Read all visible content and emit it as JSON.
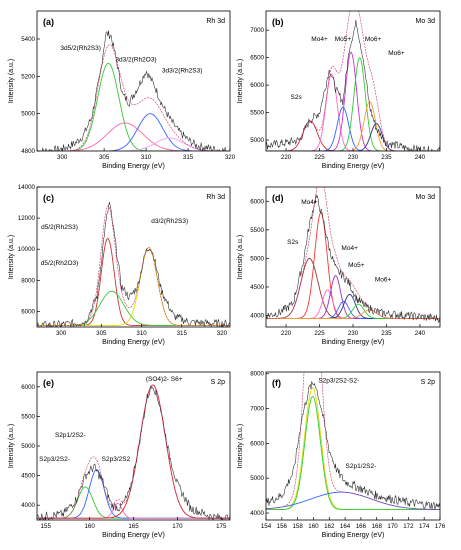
{
  "figure": {
    "xlabel": "Binding Energy (eV)",
    "ylabel": "Intensity (a.u.)"
  },
  "chart_data": [
    {
      "type": "line",
      "panel": "(a)",
      "element": "Rh 3d",
      "xlim": [
        297,
        320
      ],
      "ylim": [
        4800,
        5550
      ],
      "xticks": [
        300,
        305,
        310,
        315,
        320
      ],
      "yticks": [
        4800,
        5000,
        5200,
        5400
      ],
      "xlabel": "Binding Energy (eV)",
      "ylabel": "Intensity (a.u.)",
      "background": 4800,
      "raw_points": [
        [
          298,
          4800
        ],
        [
          300,
          4810
        ],
        [
          301.5,
          4840
        ],
        [
          302.5,
          4880
        ],
        [
          303.5,
          4980
        ],
        [
          304.5,
          5200
        ],
        [
          305.2,
          5430
        ],
        [
          305.8,
          5420
        ],
        [
          306.5,
          5280
        ],
        [
          307.2,
          5100
        ],
        [
          308,
          5060
        ],
        [
          309,
          5140
        ],
        [
          310,
          5230
        ],
        [
          311,
          5150
        ],
        [
          312,
          5040
        ],
        [
          313,
          4960
        ],
        [
          314,
          4900
        ],
        [
          315,
          4860
        ],
        [
          316,
          4830
        ],
        [
          318,
          4810
        ],
        [
          320,
          4800
        ]
      ],
      "peaks": [
        {
          "center": 305.5,
          "height": 470,
          "fwhm": 3.0,
          "color": "#33cc33"
        },
        {
          "center": 307.5,
          "height": 150,
          "fwhm": 5.0,
          "color": "#ff66aa"
        },
        {
          "center": 310.5,
          "height": 200,
          "fwhm": 3.5,
          "color": "#3366ff"
        },
        {
          "center": 312.8,
          "height": 70,
          "fwhm": 4.0,
          "color": "#ff99ff"
        }
      ],
      "annotations": [
        {
          "text": "3d5/2(Rh2S3)",
          "x": 302.2,
          "y": 5340
        },
        {
          "text": "3d3/2(Rh2O3)",
          "x": 308.8,
          "y": 5280
        },
        {
          "text": "3d3/2(Rh2S3)",
          "x": 314.3,
          "y": 5220
        }
      ]
    },
    {
      "type": "line",
      "panel": "(b)",
      "element": "Mo 3d",
      "xlim": [
        217,
        243
      ],
      "ylim": [
        4800,
        7350
      ],
      "xticks": [
        220,
        225,
        230,
        235,
        240
      ],
      "yticks": [
        5000,
        5500,
        6000,
        6500,
        7000
      ],
      "xlabel": "Binding Energy (eV)",
      "ylabel": "Intensity (a.u.)",
      "background": 4800,
      "raw_points": [
        [
          217,
          4900
        ],
        [
          220,
          4950
        ],
        [
          222,
          5000
        ],
        [
          223.5,
          5350
        ],
        [
          225,
          5500
        ],
        [
          226.5,
          6300
        ],
        [
          227.5,
          5900
        ],
        [
          228.5,
          5700
        ],
        [
          229.5,
          6700
        ],
        [
          230.5,
          7150
        ],
        [
          231.5,
          6500
        ],
        [
          232.5,
          5600
        ],
        [
          233.5,
          5200
        ],
        [
          235,
          4950
        ],
        [
          238,
          4850
        ],
        [
          243,
          4800
        ]
      ],
      "peaks": [
        {
          "center": 223.6,
          "height": 550,
          "fwhm": 2.5,
          "color": "#cc3333"
        },
        {
          "center": 226.8,
          "height": 1400,
          "fwhm": 2.0,
          "color": "#ff66cc"
        },
        {
          "center": 228.5,
          "height": 800,
          "fwhm": 2.0,
          "color": "#3366ff"
        },
        {
          "center": 229.7,
          "height": 1800,
          "fwhm": 2.0,
          "color": "#cc33cc"
        },
        {
          "center": 231.0,
          "height": 1700,
          "fwhm": 2.0,
          "color": "#33cc33"
        },
        {
          "center": 232.5,
          "height": 900,
          "fwhm": 2.0,
          "color": "#ff9933"
        },
        {
          "center": 233.5,
          "height": 500,
          "fwhm": 2.0,
          "color": "#333399"
        }
      ],
      "annotations": [
        {
          "text": "S2s",
          "x": 221.5,
          "y": 5750
        },
        {
          "text": "Mo4+",
          "x": 225.0,
          "y": 6800
        },
        {
          "text": "Mo5+",
          "x": 228.5,
          "y": 6800
        },
        {
          "text": "Mo6+",
          "x": 233.0,
          "y": 6800
        },
        {
          "text": "Mo6+",
          "x": 236.5,
          "y": 6550
        }
      ]
    },
    {
      "type": "line",
      "panel": "(c)",
      "element": "Rh 3d",
      "xlim": [
        297,
        321
      ],
      "ylim": [
        5000,
        14000
      ],
      "xticks": [
        300,
        305,
        310,
        315,
        320
      ],
      "yticks": [
        6000,
        8000,
        10000,
        12000,
        14000
      ],
      "xlabel": "Binding Energy (eV)",
      "ylabel": "Intensity (a.u.)",
      "background": 5100,
      "raw_points": [
        [
          297,
          5100
        ],
        [
          300,
          5150
        ],
        [
          303,
          5300
        ],
        [
          304.5,
          7000
        ],
        [
          305.5,
          11500
        ],
        [
          306,
          13000
        ],
        [
          306.6,
          11000
        ],
        [
          307.5,
          7600
        ],
        [
          308.5,
          6900
        ],
        [
          309.5,
          7600
        ],
        [
          310.5,
          9800
        ],
        [
          311,
          10200
        ],
        [
          311.5,
          9600
        ],
        [
          312.5,
          7300
        ],
        [
          314,
          5700
        ],
        [
          316,
          5300
        ],
        [
          320,
          5200
        ]
      ],
      "peaks": [
        {
          "center": 305.8,
          "height": 5600,
          "fwhm": 1.9,
          "color": "#cc3333"
        },
        {
          "center": 306.3,
          "height": 2200,
          "fwhm": 3.5,
          "color": "#33cc33"
        },
        {
          "center": 310.9,
          "height": 5000,
          "fwhm": 2.5,
          "color": "#dddd00"
        }
      ],
      "annotations": [
        {
          "text": "d5/2(Rh2S3)",
          "x": 299.8,
          "y": 11300
        },
        {
          "text": "d5/2(Rh2O3)",
          "x": 299.8,
          "y": 9000
        },
        {
          "text": "d3/2(Rh2S3)",
          "x": 313.5,
          "y": 11700
        }
      ]
    },
    {
      "type": "line",
      "panel": "(d)",
      "element": "Mo 3d",
      "xlim": [
        217,
        243
      ],
      "ylim": [
        3800,
        6250
      ],
      "xticks": [
        220,
        225,
        230,
        235,
        240
      ],
      "yticks": [
        4000,
        4500,
        5000,
        5500,
        6000
      ],
      "xlabel": "Binding Energy (eV)",
      "ylabel": "Intensity (a.u.)",
      "background": 3950,
      "raw_points": [
        [
          217,
          4000
        ],
        [
          219,
          4050
        ],
        [
          221,
          4200
        ],
        [
          222.5,
          4900
        ],
        [
          223.5,
          5600
        ],
        [
          224.5,
          6100
        ],
        [
          225.5,
          5700
        ],
        [
          226.5,
          5150
        ],
        [
          227.5,
          4800
        ],
        [
          228.5,
          4700
        ],
        [
          229.5,
          4550
        ],
        [
          230.5,
          4300
        ],
        [
          232,
          4150
        ],
        [
          234,
          4050
        ],
        [
          238,
          4000
        ],
        [
          243,
          3950
        ]
      ],
      "peaks": [
        {
          "center": 223.5,
          "height": 1050,
          "fwhm": 3.0,
          "color": "#993333"
        },
        {
          "center": 225.2,
          "height": 1850,
          "fwhm": 2.2,
          "color": "#ff3333"
        },
        {
          "center": 226.2,
          "height": 500,
          "fwhm": 1.8,
          "color": "#ff66cc"
        },
        {
          "center": 227.4,
          "height": 750,
          "fwhm": 1.8,
          "color": "#9933cc"
        },
        {
          "center": 228.6,
          "height": 300,
          "fwhm": 1.8,
          "color": "#3366ff"
        },
        {
          "center": 229.5,
          "height": 420,
          "fwhm": 2.0,
          "color": "#333399"
        },
        {
          "center": 230.8,
          "height": 250,
          "fwhm": 2.0,
          "color": "#33cc33"
        },
        {
          "center": 232.5,
          "height": 150,
          "fwhm": 2.5,
          "color": "#ff9933"
        }
      ],
      "annotations": [
        {
          "text": "Mo4+",
          "x": 223.5,
          "y": 5950
        },
        {
          "text": "S2s",
          "x": 221.0,
          "y": 5250
        },
        {
          "text": "Mo4+",
          "x": 229.5,
          "y": 5150
        },
        {
          "text": "Mo5+",
          "x": 230.5,
          "y": 4850
        },
        {
          "text": "Mo6+",
          "x": 234.5,
          "y": 4600
        }
      ]
    },
    {
      "type": "line",
      "panel": "(e)",
      "element": "S 2p",
      "xlim": [
        154,
        176
      ],
      "ylim": [
        3750,
        6250
      ],
      "xticks": [
        155,
        160,
        165,
        170,
        175
      ],
      "yticks": [
        4000,
        4500,
        5000,
        5500,
        6000
      ],
      "xlabel": "Binding Energy (eV)",
      "ylabel": "Intensity (a.u.)",
      "background": 3780,
      "raw_points": [
        [
          154,
          3800
        ],
        [
          157,
          3850
        ],
        [
          158.5,
          4100
        ],
        [
          159.5,
          4500
        ],
        [
          160.5,
          4650
        ],
        [
          161.5,
          4400
        ],
        [
          162.5,
          4000
        ],
        [
          163.5,
          3950
        ],
        [
          164.5,
          4200
        ],
        [
          165.5,
          4900
        ],
        [
          166.5,
          5800
        ],
        [
          167.2,
          6050
        ],
        [
          168,
          5700
        ],
        [
          169,
          4900
        ],
        [
          170,
          4350
        ],
        [
          171.5,
          3950
        ],
        [
          174,
          3800
        ],
        [
          176,
          3780
        ]
      ],
      "peaks": [
        {
          "center": 159.5,
          "height": 530,
          "fwhm": 2.0,
          "color": "#33cc33"
        },
        {
          "center": 160.8,
          "height": 820,
          "fwhm": 2.0,
          "color": "#3366ff"
        },
        {
          "center": 163.2,
          "height": 250,
          "fwhm": 1.2,
          "color": "#ff66cc"
        },
        {
          "center": 167.2,
          "height": 2250,
          "fwhm": 3.4,
          "color": "#dd2222"
        }
      ],
      "annotations": [
        {
          "text": "(SO4)2- S6+",
          "x": 168.5,
          "y": 6100
        },
        {
          "text": "S2p1/2S2-",
          "x": 157.8,
          "y": 5150
        },
        {
          "text": "S2p3/2S2-",
          "x": 156.0,
          "y": 4750
        },
        {
          "text": "S2p3/2S2",
          "x": 163.0,
          "y": 4750
        }
      ]
    },
    {
      "type": "line",
      "panel": "(f)",
      "element": "S 2p",
      "xlim": [
        154,
        176
      ],
      "ylim": [
        3800,
        8050
      ],
      "xticks": [
        154,
        156,
        158,
        160,
        162,
        164,
        166,
        168,
        170,
        172,
        174,
        176
      ],
      "yticks": [
        4000,
        5000,
        6000,
        7000,
        8000
      ],
      "xlabel": "Binding Energy (eV)",
      "ylabel": "Intensity (a.u.)",
      "background": 4100,
      "raw_points": [
        [
          154,
          4300
        ],
        [
          156,
          4500
        ],
        [
          157.5,
          5200
        ],
        [
          158.5,
          6700
        ],
        [
          159.5,
          7600
        ],
        [
          160.2,
          7750
        ],
        [
          161,
          7000
        ],
        [
          162,
          5800
        ],
        [
          163,
          5200
        ],
        [
          164,
          4900
        ],
        [
          166,
          4700
        ],
        [
          168,
          4500
        ],
        [
          170,
          4400
        ],
        [
          172,
          4300
        ],
        [
          176,
          4200
        ]
      ],
      "peaks": [
        {
          "center": 159.9,
          "height": 3500,
          "fwhm": 2.4,
          "color": "#dddd00"
        },
        {
          "center": 159.9,
          "height": 3250,
          "fwhm": 2.3,
          "color": "#33cc33"
        },
        {
          "center": 163.5,
          "height": 500,
          "fwhm": 9.0,
          "color": "#3366ff"
        }
      ],
      "annotations": [
        {
          "text": "S2p3/2S2-S2-",
          "x": 163.2,
          "y": 7750
        },
        {
          "text": "S2p1/2S2-",
          "x": 166.0,
          "y": 5300
        }
      ]
    }
  ]
}
